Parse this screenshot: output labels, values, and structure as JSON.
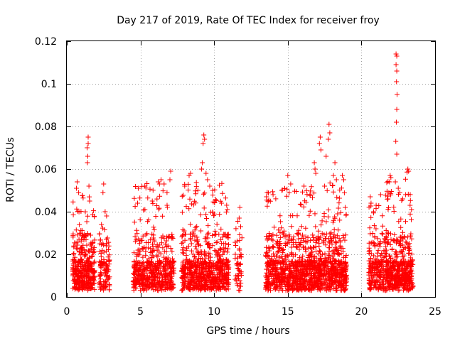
{
  "chart_data": {
    "type": "scatter",
    "title": "Day 217 of 2019, Rate Of TEC Index for receiver froy",
    "xlabel": "GPS time / hours",
    "ylabel": "ROTI / TECUs",
    "xlim": [
      0,
      25
    ],
    "ylim": [
      0,
      0.12
    ],
    "x_ticks": [
      0,
      5,
      10,
      15,
      20,
      25
    ],
    "x_tick_labels": [
      "0",
      "5",
      "10",
      "15",
      "20",
      "25"
    ],
    "y_ticks": [
      0,
      0.02,
      0.04,
      0.06,
      0.08,
      0.1,
      0.12
    ],
    "y_tick_labels": [
      "0",
      "0.02",
      "0.04",
      "0.06",
      "0.08",
      "0.1",
      "0.12"
    ],
    "grid": true,
    "marker": "+",
    "series": [
      {
        "name": "ROTI",
        "color": "#ff0000",
        "segments": [
          {
            "start": 0.4,
            "end": 1.9,
            "n": 380,
            "typical_max": 0.045
          },
          {
            "start": 2.2,
            "end": 2.9,
            "n": 110,
            "typical_max": 0.038
          },
          {
            "start": 4.5,
            "end": 7.3,
            "n": 520,
            "typical_max": 0.05
          },
          {
            "start": 7.8,
            "end": 11.0,
            "n": 700,
            "typical_max": 0.05
          },
          {
            "start": 11.4,
            "end": 11.9,
            "n": 45,
            "typical_max": 0.036
          },
          {
            "start": 13.5,
            "end": 19.0,
            "n": 1250,
            "typical_max": 0.05
          },
          {
            "start": 20.5,
            "end": 21.6,
            "n": 200,
            "typical_max": 0.04
          },
          {
            "start": 21.6,
            "end": 23.5,
            "n": 480,
            "typical_max": 0.055
          }
        ],
        "points": [
          [
            1.45,
            0.075
          ],
          [
            1.45,
            0.072
          ],
          [
            1.38,
            0.07
          ],
          [
            1.42,
            0.066
          ],
          [
            1.4,
            0.063
          ],
          [
            1.5,
            0.052
          ],
          [
            1.55,
            0.045
          ],
          [
            0.7,
            0.054
          ],
          [
            0.65,
            0.051
          ],
          [
            0.8,
            0.049
          ],
          [
            2.5,
            0.053
          ],
          [
            2.45,
            0.049
          ],
          [
            2.6,
            0.04
          ],
          [
            2.7,
            0.038
          ],
          [
            2.35,
            0.034
          ],
          [
            4.85,
            0.051
          ],
          [
            4.8,
            0.044
          ],
          [
            6.4,
            0.055
          ],
          [
            6.2,
            0.054
          ],
          [
            6.6,
            0.053
          ],
          [
            6.8,
            0.049
          ],
          [
            7.05,
            0.059
          ],
          [
            7.0,
            0.055
          ],
          [
            5.3,
            0.041
          ],
          [
            5.8,
            0.045
          ],
          [
            8.4,
            0.058
          ],
          [
            8.3,
            0.057
          ],
          [
            8.0,
            0.052
          ],
          [
            9.3,
            0.076
          ],
          [
            9.35,
            0.074
          ],
          [
            9.25,
            0.072
          ],
          [
            9.2,
            0.063
          ],
          [
            9.15,
            0.06
          ],
          [
            9.45,
            0.058
          ],
          [
            9.55,
            0.055
          ],
          [
            9.7,
            0.052
          ],
          [
            9.9,
            0.05
          ],
          [
            8.9,
            0.05
          ],
          [
            10.5,
            0.044
          ],
          [
            10.9,
            0.041
          ],
          [
            11.75,
            0.042
          ],
          [
            11.7,
            0.037
          ],
          [
            11.8,
            0.033
          ],
          [
            11.72,
            0.022
          ],
          [
            11.78,
            0.019
          ],
          [
            11.75,
            0.003
          ],
          [
            11.8,
            0.005
          ],
          [
            13.6,
            0.049
          ],
          [
            13.55,
            0.047
          ],
          [
            14.0,
            0.048
          ],
          [
            14.6,
            0.05
          ],
          [
            15.0,
            0.057
          ],
          [
            15.2,
            0.053
          ],
          [
            16.1,
            0.052
          ],
          [
            16.8,
            0.063
          ],
          [
            16.85,
            0.06
          ],
          [
            16.9,
            0.058
          ],
          [
            17.2,
            0.075
          ],
          [
            17.15,
            0.072
          ],
          [
            17.25,
            0.069
          ],
          [
            17.6,
            0.066
          ],
          [
            17.8,
            0.081
          ],
          [
            17.85,
            0.077
          ],
          [
            17.75,
            0.074
          ],
          [
            18.2,
            0.063
          ],
          [
            18.1,
            0.057
          ],
          [
            18.3,
            0.055
          ],
          [
            18.7,
            0.057
          ],
          [
            18.8,
            0.055
          ],
          [
            17.5,
            0.052
          ],
          [
            16.5,
            0.048
          ],
          [
            18.9,
            0.042
          ],
          [
            20.6,
            0.047
          ],
          [
            20.65,
            0.044
          ],
          [
            21.3,
            0.048
          ],
          [
            21.0,
            0.043
          ],
          [
            22.35,
            0.114
          ],
          [
            22.4,
            0.113
          ],
          [
            22.35,
            0.109
          ],
          [
            22.4,
            0.106
          ],
          [
            22.38,
            0.101
          ],
          [
            22.42,
            0.095
          ],
          [
            22.4,
            0.088
          ],
          [
            22.37,
            0.082
          ],
          [
            22.33,
            0.073
          ],
          [
            22.4,
            0.067
          ],
          [
            21.95,
            0.057
          ],
          [
            22.0,
            0.056
          ],
          [
            21.9,
            0.054
          ],
          [
            22.3,
            0.054
          ],
          [
            22.5,
            0.051
          ],
          [
            22.6,
            0.049
          ],
          [
            23.15,
            0.06
          ],
          [
            23.2,
            0.059
          ],
          [
            23.0,
            0.048
          ],
          [
            22.8,
            0.046
          ],
          [
            23.4,
            0.041
          ],
          [
            23.3,
            0.043
          ],
          [
            21.8,
            0.046
          ]
        ]
      }
    ]
  }
}
